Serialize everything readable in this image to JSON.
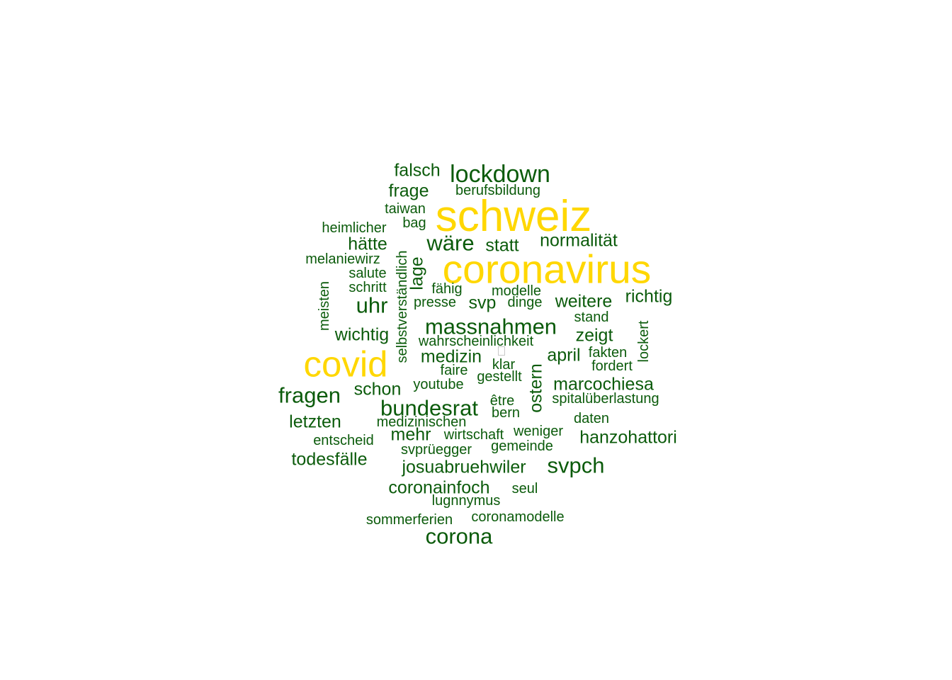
{
  "colors": {
    "highlight": "#ffd700",
    "normal": "#0b5b0b",
    "background": "#ffffff"
  },
  "words": [
    "schweiz",
    "coronavirus",
    "covid",
    "lockdown",
    "falsch",
    "frage",
    "berufsbildung",
    "taiwan",
    "bag",
    "heimlicher",
    "hätte",
    "wäre",
    "statt",
    "normalität",
    "melaniewirz",
    "salute",
    "schritt",
    "selbstverständlich",
    "lage",
    "fähig",
    "modelle",
    "presse",
    "dinge",
    "meisten",
    "uhr",
    "svp",
    "weitere",
    "richtig",
    "stand",
    "massnahmen",
    "zeigt",
    "wichtig",
    "wahrscheinlichkeit",
    "lockert",
    "medizin",
    "april",
    "fakten",
    "fordert",
    "klar",
    "faire",
    "gestellt",
    "ostern",
    "fragen",
    "schon",
    "youtube",
    "marcochiesa",
    "être",
    "spitalüberlastung",
    "bundesrat",
    "bern",
    "letzten",
    "medizinischen",
    "daten",
    "mehr",
    "wirtschaft",
    "weniger",
    "entscheid",
    "hanzohattori",
    "gemeinde",
    "svprüegger",
    "todesfälle",
    "josuabruehwiler",
    "svpch",
    "coronainfoch",
    "seul",
    "lugnnymus",
    "sommerferien",
    "coronamodelle",
    "corona"
  ]
}
